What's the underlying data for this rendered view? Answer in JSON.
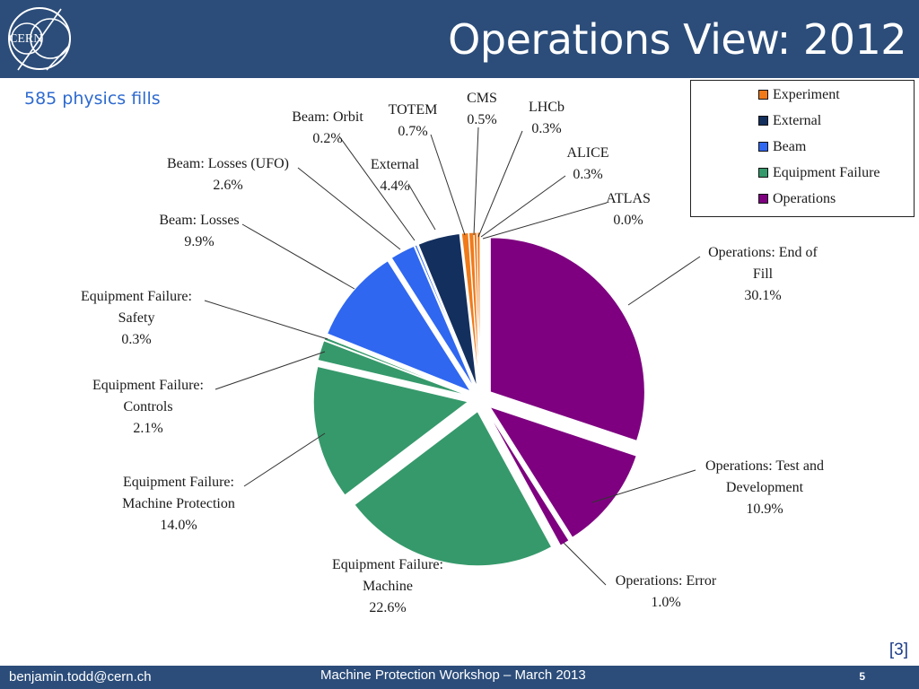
{
  "header": {
    "title": "Operations View: 2012",
    "logo_text": "CERN"
  },
  "subtitle": "585 physics fills",
  "reference": "[3]",
  "footer": {
    "email": "benjamin.todd@cern.ch",
    "event": "Machine Protection Workshop – March 2013",
    "page": "5"
  },
  "colors": {
    "header_bg": "#2c4d7a",
    "Experiment": "#f07a1a",
    "External": "#132f5e",
    "Beam": "#2f67f0",
    "Equipment Failure": "#36996b",
    "Operations": "#7e0080"
  },
  "legend": [
    {
      "name": "Experiment",
      "color_key": "Experiment"
    },
    {
      "name": "External",
      "color_key": "External"
    },
    {
      "name": "Beam",
      "color_key": "Beam"
    },
    {
      "name": "Equipment Failure",
      "color_key": "Equipment Failure"
    },
    {
      "name": "Operations",
      "color_key": "Operations"
    }
  ],
  "chart_data": {
    "type": "pie",
    "title": "",
    "legend_position": "top-right",
    "slices": [
      {
        "label": "Operations: End of Fill",
        "value": 30.1,
        "value_label": "30.1%",
        "group": "Operations",
        "text": [
          "Operations: End of",
          "Fill",
          "30.1%"
        ]
      },
      {
        "label": "Operations: Test and Development",
        "value": 10.9,
        "value_label": "10.9%",
        "group": "Operations",
        "text": [
          "Operations: Test and",
          "Development",
          "10.9%"
        ]
      },
      {
        "label": "Operations: Error",
        "value": 1.0,
        "value_label": "1.0%",
        "group": "Operations",
        "text": [
          "Operations: Error",
          "1.0%"
        ]
      },
      {
        "label": "Equipment Failure: Machine",
        "value": 22.6,
        "value_label": "22.6%",
        "group": "Equipment Failure",
        "text": [
          "Equipment Failure:",
          "Machine",
          "22.6%"
        ]
      },
      {
        "label": "Equipment Failure: Machine Protection",
        "value": 14.0,
        "value_label": "14.0%",
        "group": "Equipment Failure",
        "text": [
          "Equipment Failure:",
          "Machine Protection",
          "14.0%"
        ]
      },
      {
        "label": "Equipment Failure: Controls",
        "value": 2.1,
        "value_label": "2.1%",
        "group": "Equipment Failure",
        "text": [
          "Equipment Failure:",
          "Controls",
          "2.1%"
        ]
      },
      {
        "label": "Equipment Failure: Safety",
        "value": 0.3,
        "value_label": "0.3%",
        "group": "Equipment Failure",
        "text": [
          "Equipment Failure:",
          "Safety",
          "0.3%"
        ]
      },
      {
        "label": "Beam: Losses",
        "value": 9.9,
        "value_label": "9.9%",
        "group": "Beam",
        "text": [
          "Beam: Losses",
          "9.9%"
        ]
      },
      {
        "label": "Beam: Losses (UFO)",
        "value": 2.6,
        "value_label": "2.6%",
        "group": "Beam",
        "text": [
          "Beam: Losses (UFO)",
          "2.6%"
        ]
      },
      {
        "label": "Beam: Orbit",
        "value": 0.2,
        "value_label": "0.2%",
        "group": "Beam",
        "text": [
          "Beam: Orbit",
          "0.2%"
        ]
      },
      {
        "label": "External",
        "value": 4.4,
        "value_label": "4.4%",
        "group": "External",
        "text": [
          "External",
          "4.4%"
        ]
      },
      {
        "label": "TOTEM",
        "value": 0.7,
        "value_label": "0.7%",
        "group": "Experiment",
        "text": [
          "TOTEM",
          "0.7%"
        ]
      },
      {
        "label": "CMS",
        "value": 0.5,
        "value_label": "0.5%",
        "group": "Experiment",
        "text": [
          "CMS",
          "0.5%"
        ]
      },
      {
        "label": "LHCb",
        "value": 0.3,
        "value_label": "0.3%",
        "group": "Experiment",
        "text": [
          "LHCb",
          "0.3%"
        ]
      },
      {
        "label": "ALICE",
        "value": 0.3,
        "value_label": "0.3%",
        "group": "Experiment",
        "text": [
          "ALICE",
          "0.3%"
        ]
      },
      {
        "label": "ATLAS",
        "value": 0.0,
        "value_label": "0.0%",
        "group": "Experiment",
        "text": [
          "ATLAS",
          "0.0%"
        ]
      }
    ]
  }
}
